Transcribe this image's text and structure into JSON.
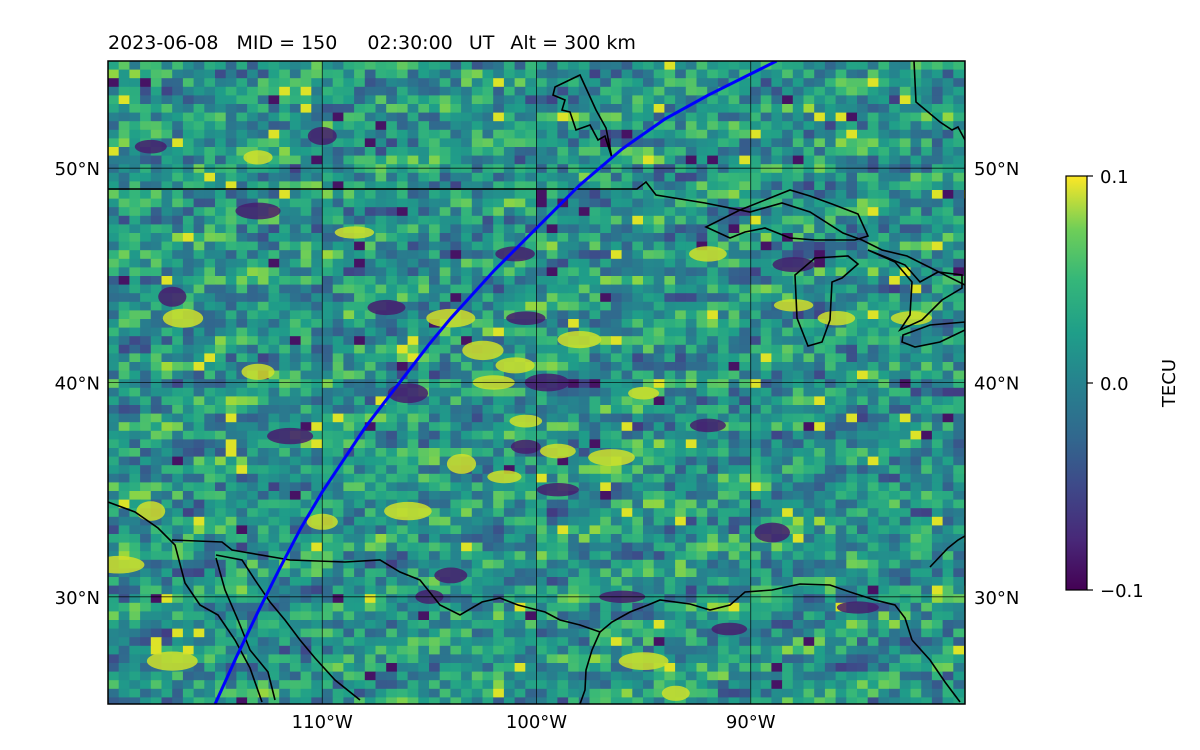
{
  "title": {
    "date": "2023-06-08",
    "mid": "MID = 150",
    "time": "02:30:00",
    "ut": "UT",
    "alt": "Alt = 300 km"
  },
  "map": {
    "lon_range": [
      -120,
      -80
    ],
    "lat_range": [
      25,
      55
    ],
    "lon_ticks": [
      {
        "value": -110,
        "label": "110°W"
      },
      {
        "value": -100,
        "label": "100°W"
      },
      {
        "value": -90,
        "label": "90°W"
      }
    ],
    "lat_ticks": [
      {
        "value": 50,
        "label": "50°N"
      },
      {
        "value": 40,
        "label": "40°N"
      },
      {
        "value": 30,
        "label": "30°N"
      }
    ],
    "grid": true,
    "colormap": "viridis",
    "track_color": "#0000ff",
    "coast_color": "#000000",
    "track": [
      [
        -115.0,
        25.0
      ],
      [
        -114.0,
        27.2
      ],
      [
        -113.0,
        29.3
      ],
      [
        -112.0,
        31.3
      ],
      [
        -111.0,
        33.2
      ],
      [
        -110.0,
        34.9
      ],
      [
        -109.0,
        36.4
      ],
      [
        -108.0,
        37.9
      ],
      [
        -107.0,
        39.2
      ],
      [
        -106.0,
        40.5
      ],
      [
        -105.0,
        41.8
      ],
      [
        -104.0,
        43.0
      ],
      [
        -102.0,
        45.2
      ],
      [
        -100.0,
        47.2
      ],
      [
        -98.0,
        49.2
      ],
      [
        -96.0,
        50.9
      ],
      [
        -94.0,
        52.3
      ],
      [
        -92.0,
        53.4
      ],
      [
        -90.0,
        54.4
      ],
      [
        -88.8,
        55.0
      ]
    ],
    "bright_patches": [
      [
        -102.5,
        41.5
      ],
      [
        -102.0,
        40.0
      ],
      [
        -101.0,
        40.8
      ],
      [
        -100.5,
        38.2
      ],
      [
        -101.5,
        35.6
      ],
      [
        -103.5,
        36.2
      ],
      [
        -106.0,
        34.0
      ],
      [
        -99.0,
        36.8
      ],
      [
        -98.0,
        42.0
      ],
      [
        -92.0,
        46.0
      ],
      [
        -86.0,
        43.0
      ],
      [
        -88.0,
        43.6
      ],
      [
        -116.5,
        43.0
      ],
      [
        -113.0,
        40.5
      ],
      [
        -119.5,
        31.5
      ],
      [
        -117.0,
        27.0
      ],
      [
        -113.0,
        50.5
      ],
      [
        -104.0,
        43.0
      ],
      [
        -95.0,
        27.0
      ],
      [
        -93.5,
        25.5
      ],
      [
        -82.5,
        43.0
      ],
      [
        -95.0,
        39.5
      ],
      [
        -110.0,
        33.5
      ],
      [
        -118.0,
        34.0
      ],
      [
        -96.5,
        36.5
      ],
      [
        -108.5,
        47.0
      ]
    ],
    "dark_patches": [
      [
        -99.5,
        40.0
      ],
      [
        -100.5,
        37.0
      ],
      [
        -99.0,
        35.0
      ],
      [
        -100.5,
        43.0
      ],
      [
        -106.0,
        39.5
      ],
      [
        -101.0,
        46.0
      ],
      [
        -92.0,
        38.0
      ],
      [
        -89.0,
        33.0
      ],
      [
        -85.0,
        29.5
      ],
      [
        -117.0,
        44.0
      ],
      [
        -113.0,
        48.0
      ],
      [
        -107.0,
        43.5
      ],
      [
        -104.0,
        31.0
      ],
      [
        -91.0,
        28.5
      ],
      [
        -96.0,
        30.0
      ],
      [
        -88.0,
        45.5
      ],
      [
        -118.0,
        51.0
      ],
      [
        -110.0,
        51.5
      ],
      [
        -105.0,
        30.0
      ],
      [
        -111.5,
        37.5
      ]
    ]
  },
  "colorbar": {
    "label": "TECU",
    "max_label": "0.1",
    "mid_label": "0.0",
    "min_label": "−0.1",
    "vmin": -0.1,
    "vmax": 0.1
  }
}
